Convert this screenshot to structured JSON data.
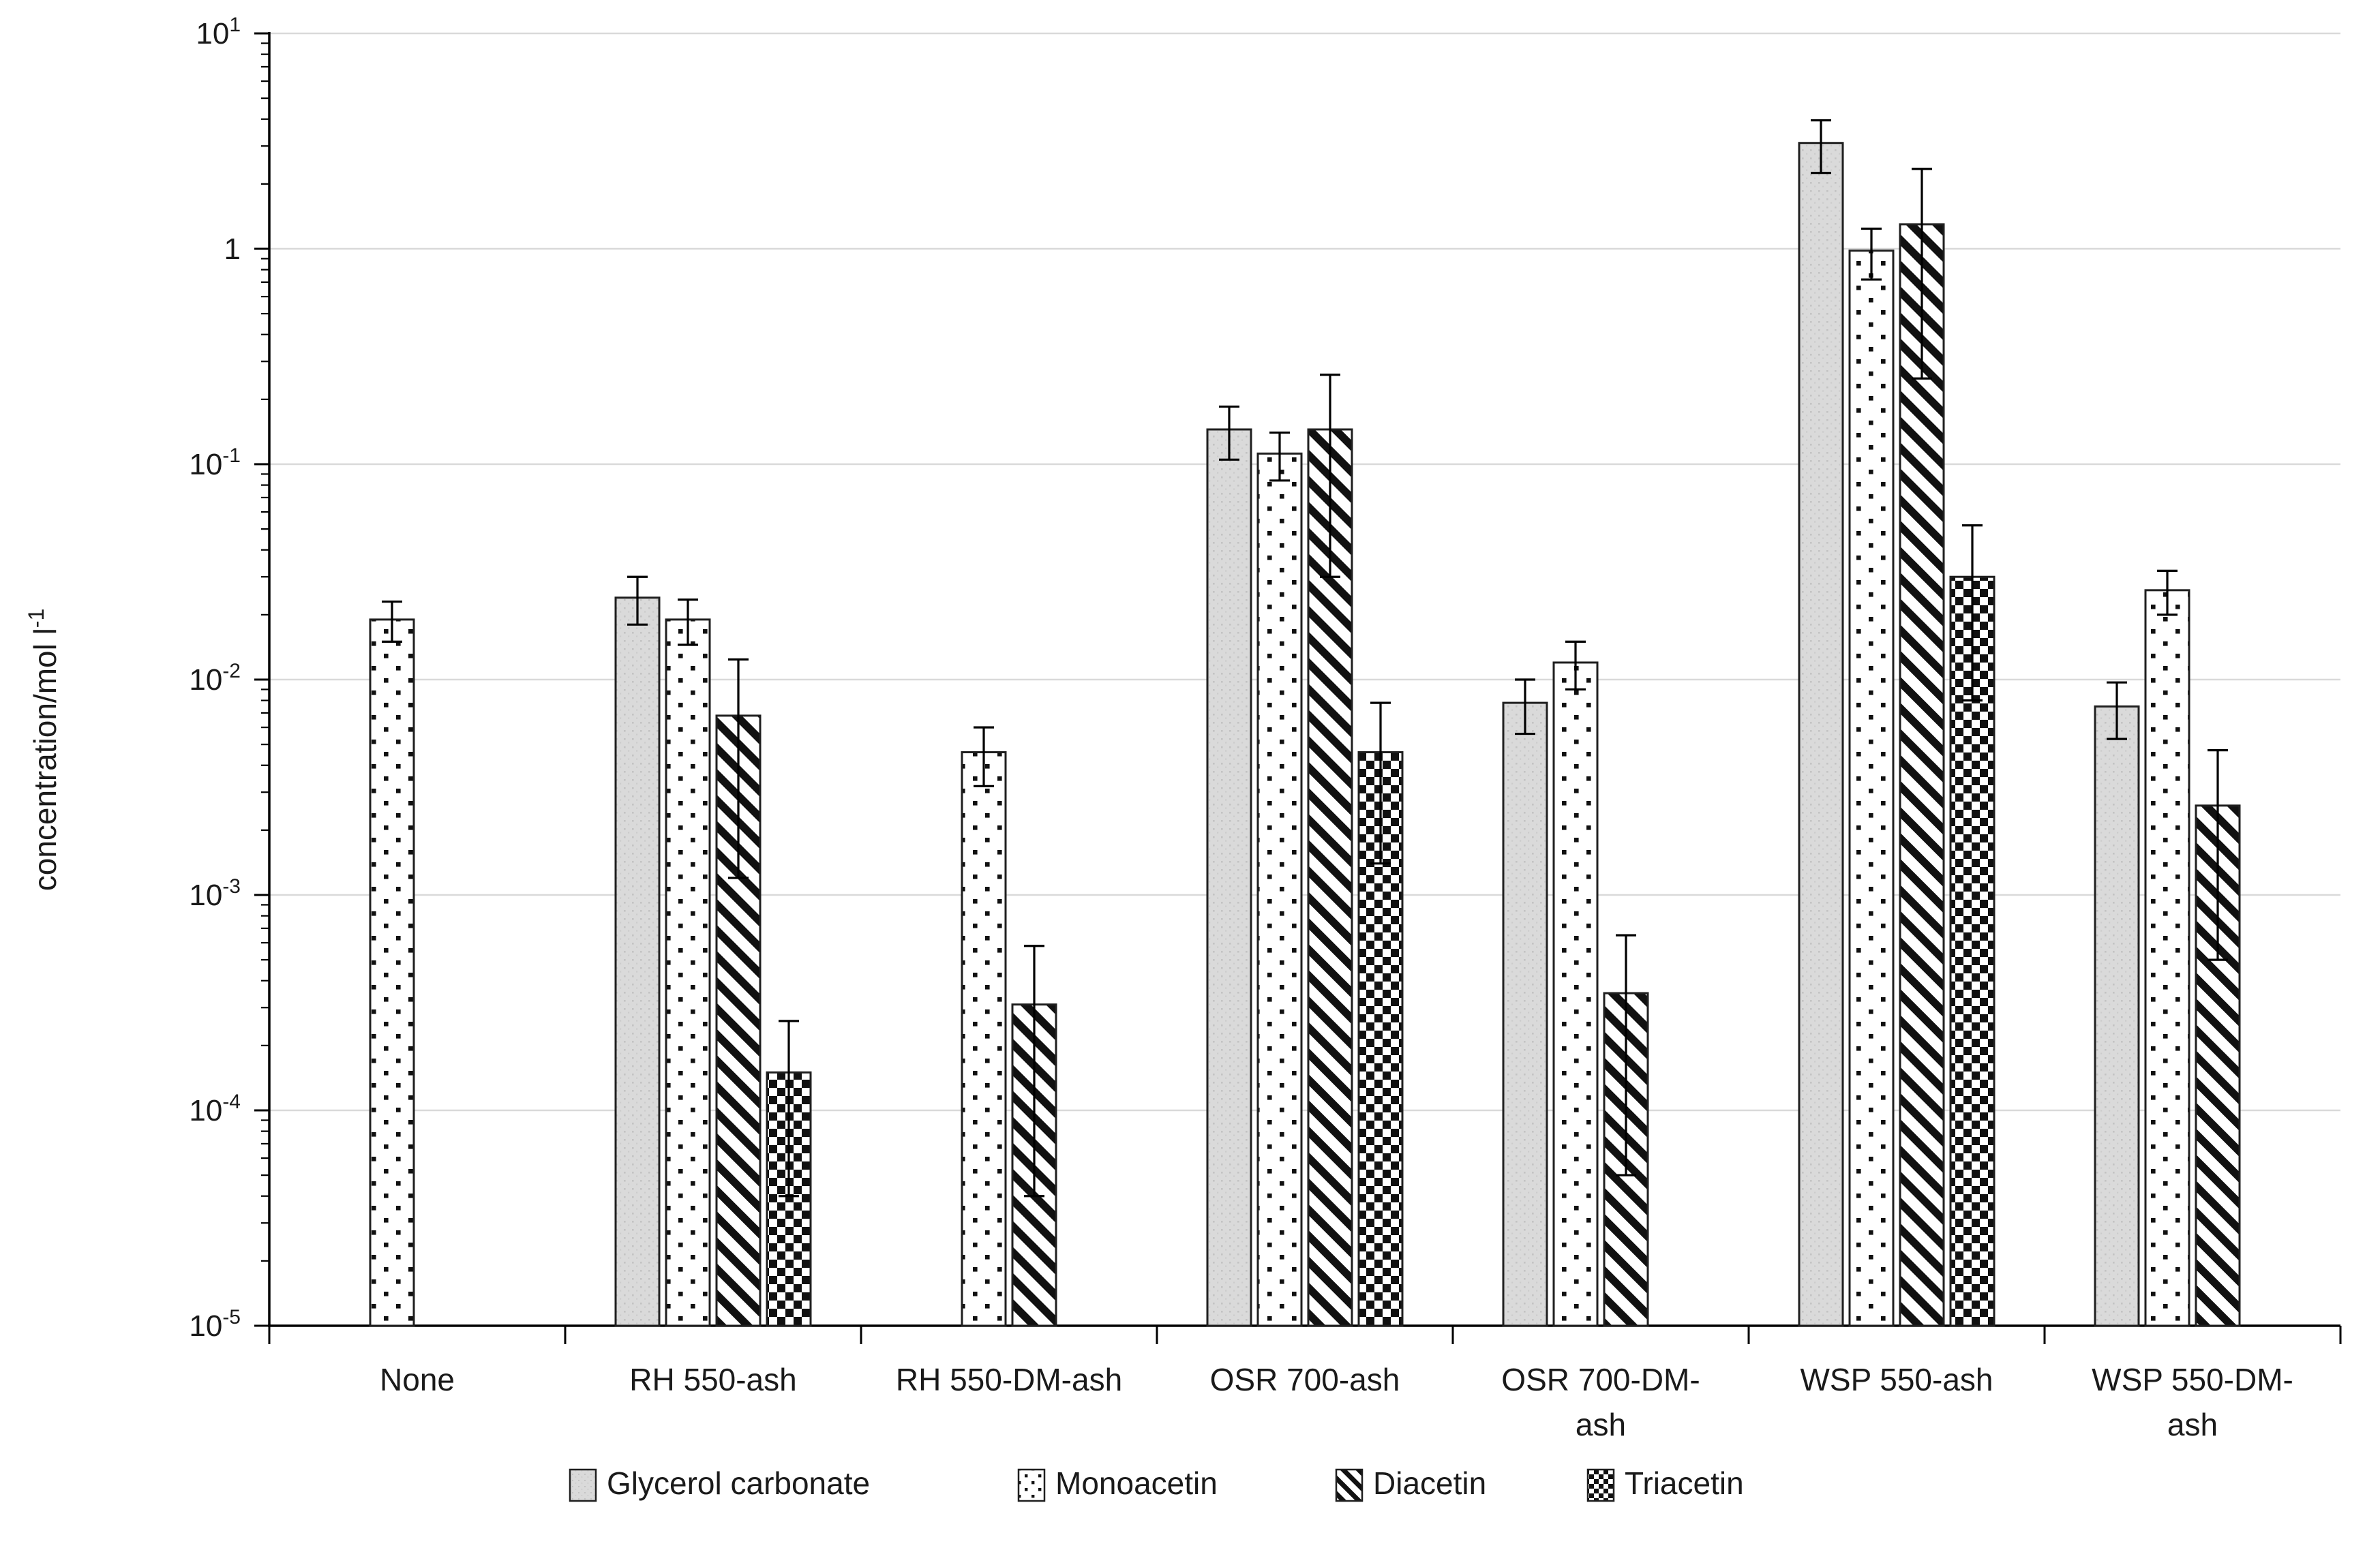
{
  "chart_data": {
    "type": "bar",
    "title": "",
    "xlabel": "",
    "ylabel": "concentration/mol l",
    "ylabel_superscript": "-1",
    "y_axis": {
      "scale": "log",
      "min": 1e-05,
      "max": 10,
      "tick_labels": [
        {
          "base": "10",
          "exp": "1"
        },
        {
          "base": "1",
          "exp": ""
        },
        {
          "base": "10",
          "exp": "-1"
        },
        {
          "base": "10",
          "exp": "-2"
        },
        {
          "base": "10",
          "exp": "-3"
        },
        {
          "base": "10",
          "exp": "-4"
        },
        {
          "base": "10",
          "exp": "-5"
        }
      ],
      "tick_exponents": [
        1,
        0,
        -1,
        -2,
        -3,
        -4,
        -5
      ]
    },
    "grid": true,
    "legend_position": "bottom",
    "categories": [
      {
        "lines": [
          "None"
        ]
      },
      {
        "lines": [
          "RH 550-ash"
        ]
      },
      {
        "lines": [
          "RH 550-DM-ash"
        ]
      },
      {
        "lines": [
          "OSR 700-ash"
        ]
      },
      {
        "lines": [
          "OSR 700-DM-",
          "ash"
        ]
      },
      {
        "lines": [
          "WSP 550-ash"
        ]
      },
      {
        "lines": [
          "WSP 550-DM-",
          "ash"
        ]
      }
    ],
    "series": [
      {
        "name": "Glycerol carbonate",
        "pattern": "gray-speckle",
        "values": [
          null,
          0.024,
          null,
          0.145,
          0.0078,
          3.1,
          0.0075
        ],
        "errors": [
          null,
          0.006,
          null,
          0.04,
          0.0022,
          0.85,
          0.0022
        ]
      },
      {
        "name": "Monoacetin",
        "pattern": "dots",
        "values": [
          0.019,
          0.019,
          0.0046,
          0.112,
          0.012,
          0.98,
          0.026
        ],
        "errors": [
          0.004,
          0.0045,
          0.0014,
          0.028,
          0.003,
          0.26,
          0.006
        ]
      },
      {
        "name": "Diacetin",
        "pattern": "diagonal-stripes",
        "values": [
          null,
          0.0068,
          0.00031,
          0.145,
          0.00035,
          1.3,
          0.0026
        ],
        "errors": [
          null,
          0.0056,
          0.00027,
          0.115,
          0.0003,
          1.05,
          0.0021
        ]
      },
      {
        "name": "Triacetin",
        "pattern": "checkerboard",
        "values": [
          null,
          0.00015,
          null,
          0.0046,
          null,
          0.03,
          null
        ],
        "errors": [
          null,
          0.00011,
          null,
          0.0032,
          null,
          0.022,
          null
        ]
      }
    ],
    "colors": {
      "bar_fill_gray": "#dadada",
      "bar_stroke": "#1f1f1f",
      "pattern_ink": "#111111",
      "gridline": "#d9d9d9",
      "axis": "#000000",
      "text": "#1a1a1a"
    }
  }
}
